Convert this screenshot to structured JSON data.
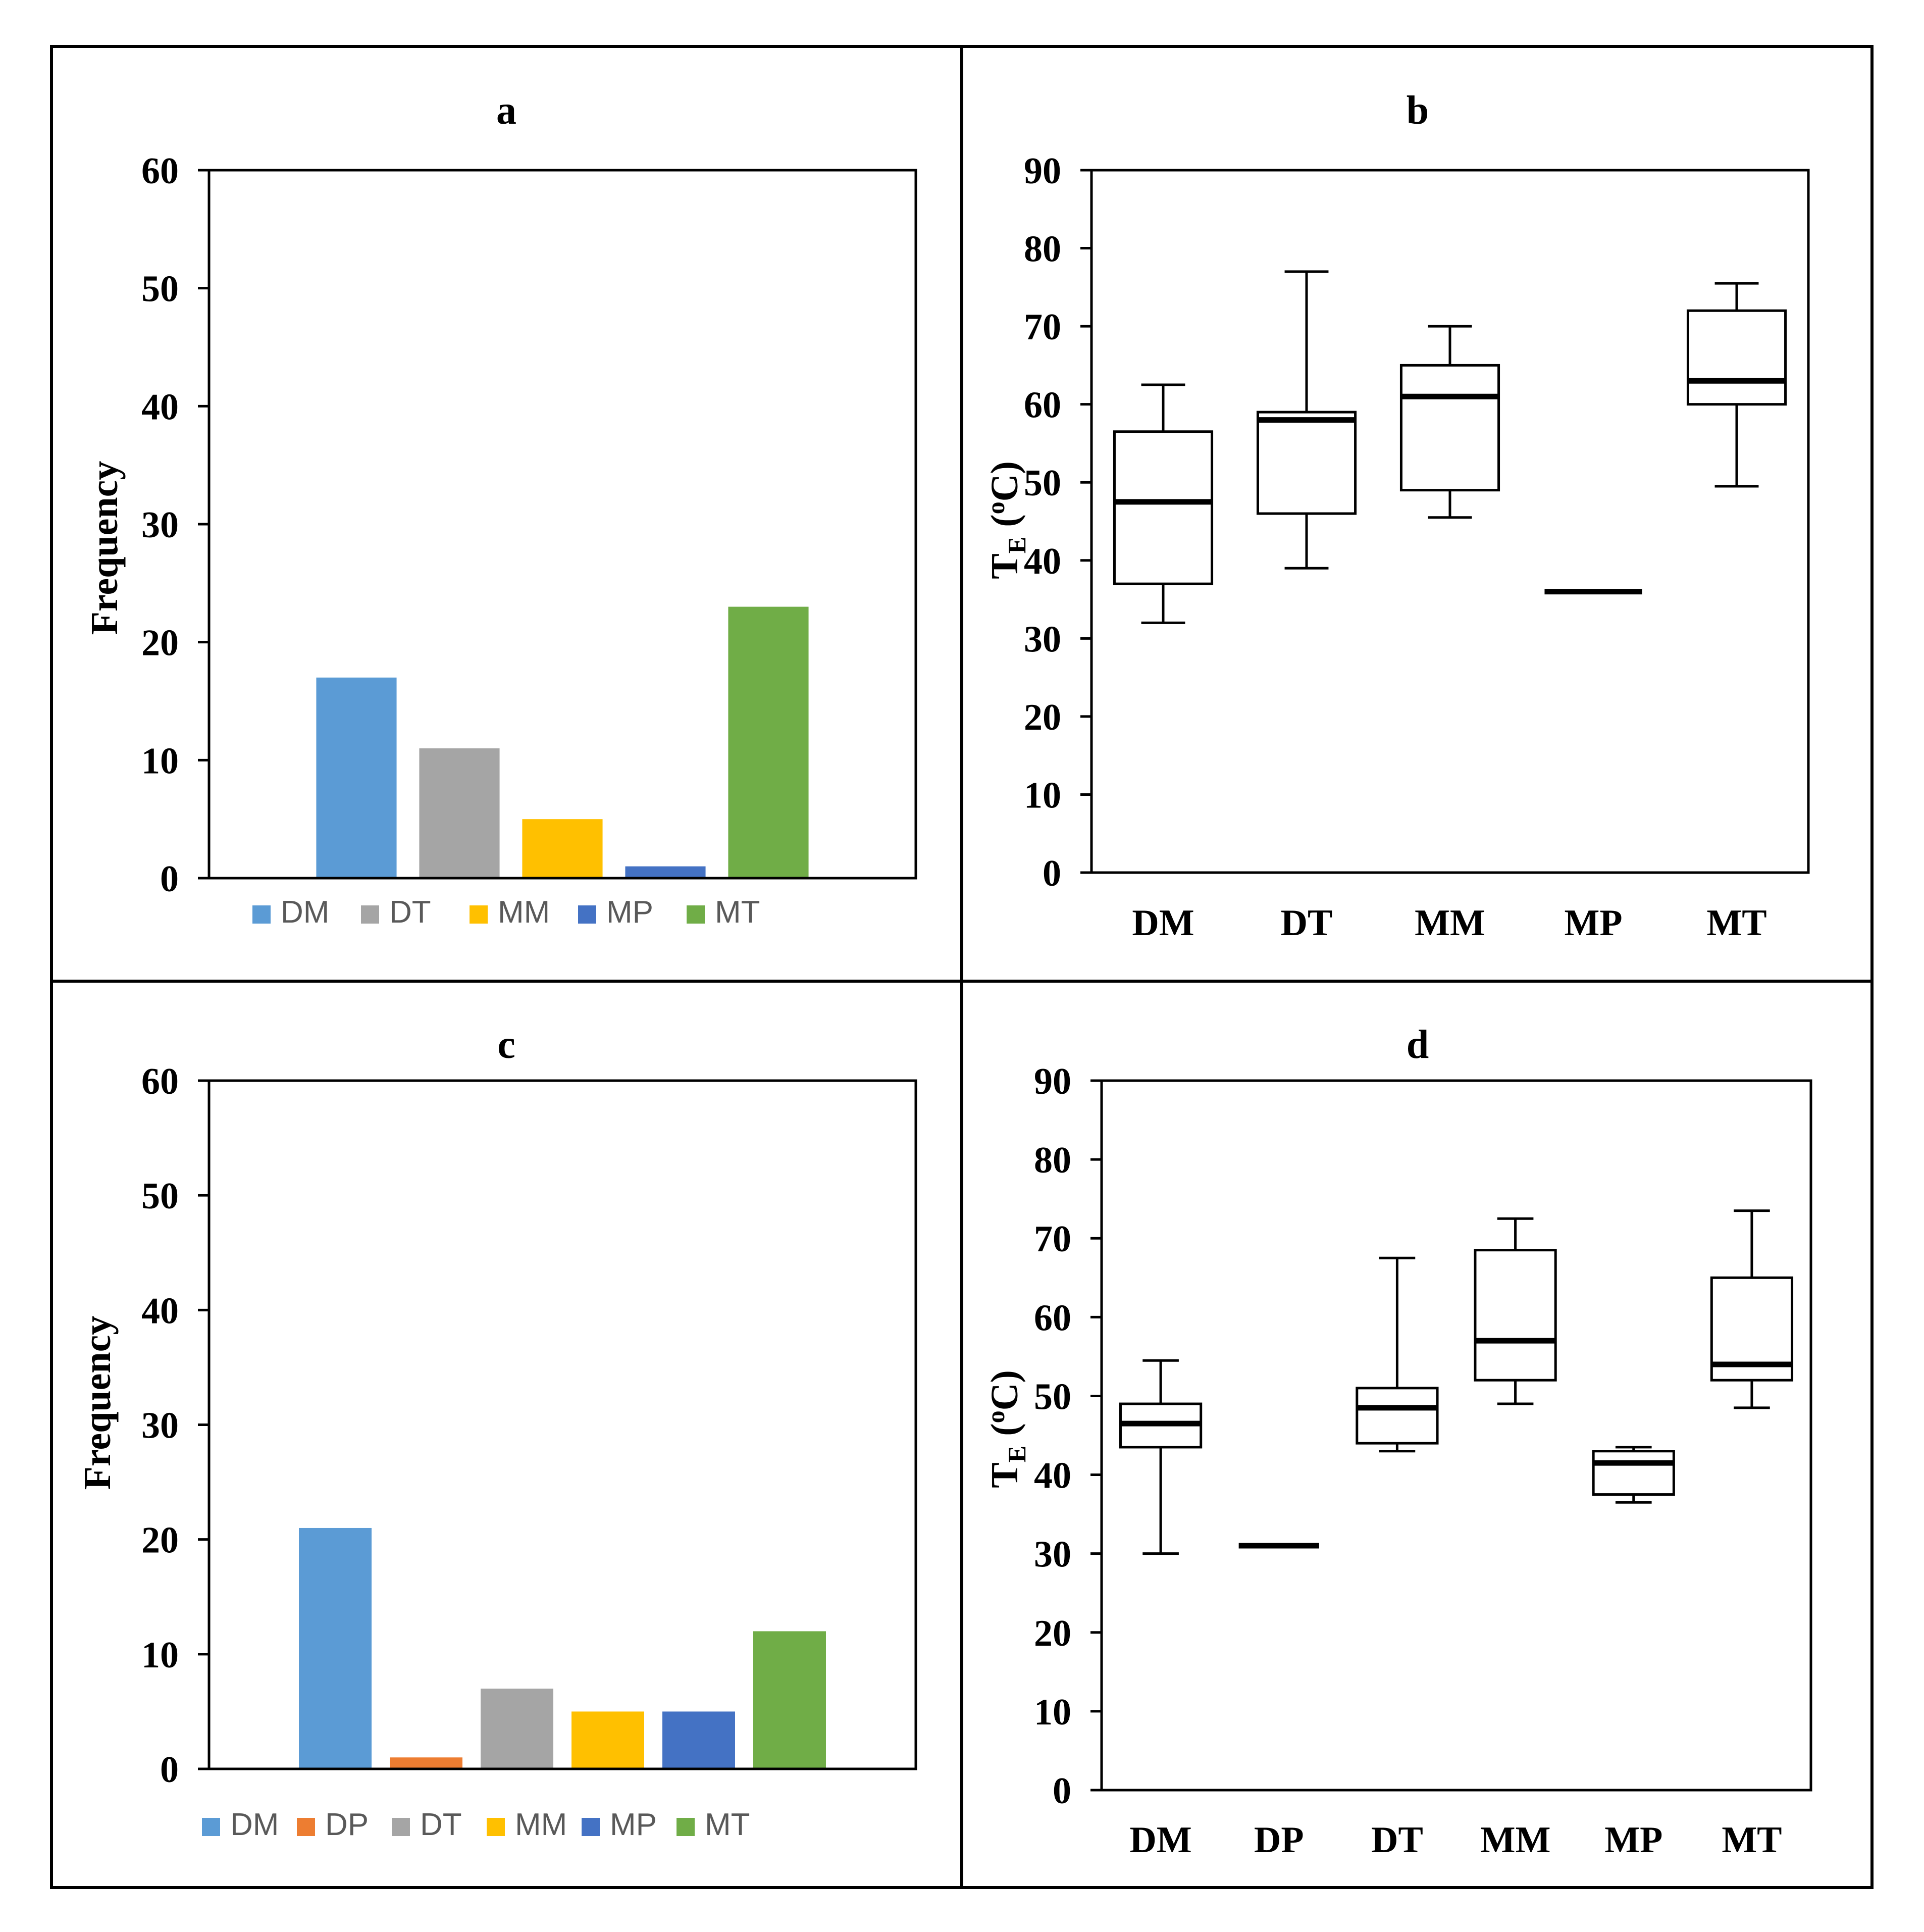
{
  "colors": {
    "DM": "#5b9bd5",
    "DP": "#ed7d31",
    "DT": "#a5a5a5",
    "MM": "#ffc000",
    "MP": "#4472c4",
    "MT": "#70ad47",
    "legend_text": "#595959",
    "ink": "#000000"
  },
  "chart_data": [
    {
      "panel": "a",
      "type": "bar",
      "title": "a",
      "ylabel": "Frequency",
      "xlabel": "",
      "ylim": [
        0,
        60
      ],
      "yticks": [
        0,
        10,
        20,
        30,
        40,
        50,
        60
      ],
      "categories": [
        "DM",
        "DT",
        "MM",
        "MP",
        "MT"
      ],
      "values": [
        17,
        11,
        5,
        1,
        23
      ],
      "legend": [
        "DM",
        "DT",
        "MM",
        "MP",
        "MT"
      ],
      "legend_position": "bottom",
      "grid": false
    },
    {
      "panel": "b",
      "type": "boxplot",
      "title": "b",
      "ylabel_main": "T",
      "ylabel_sub": "E",
      "ylabel_sup": "o",
      "ylabel_tail": "C)",
      "ylabel_open": " (",
      "ylim": [
        0,
        90
      ],
      "yticks": [
        0,
        10,
        20,
        30,
        40,
        50,
        60,
        70,
        80,
        90
      ],
      "categories": [
        "DM",
        "DT",
        "MM",
        "MP",
        "MT"
      ],
      "boxes": [
        {
          "min": 32,
          "q1": 37,
          "median": 47.5,
          "q3": 56.5,
          "max": 62.5
        },
        {
          "min": 39,
          "q1": 46,
          "median": 58,
          "q3": 59,
          "max": 77
        },
        {
          "min": 45.5,
          "q1": 49,
          "median": 61,
          "q3": 65,
          "max": 70
        },
        {
          "min": 36,
          "q1": 36,
          "median": 36,
          "q3": 36,
          "max": 36
        },
        {
          "min": 49.5,
          "q1": 60,
          "median": 63,
          "q3": 72,
          "max": 75.5
        }
      ],
      "grid": false
    },
    {
      "panel": "c",
      "type": "bar",
      "title": "c",
      "ylabel": "Frequency",
      "xlabel": "",
      "ylim": [
        0,
        60
      ],
      "yticks": [
        0,
        10,
        20,
        30,
        40,
        50,
        60
      ],
      "categories": [
        "DM",
        "DP",
        "DT",
        "MM",
        "MP",
        "MT"
      ],
      "values": [
        21,
        1,
        7,
        5,
        5,
        12
      ],
      "legend": [
        "DM",
        "DP",
        "DT",
        "MM",
        "MP",
        "MT"
      ],
      "legend_position": "bottom",
      "grid": false
    },
    {
      "panel": "d",
      "type": "boxplot",
      "title": "d",
      "ylabel_main": "T",
      "ylabel_sub": "E",
      "ylabel_sup": "o",
      "ylabel_tail": "C)",
      "ylabel_open": " (",
      "ylim": [
        0,
        90
      ],
      "yticks": [
        0,
        10,
        20,
        30,
        40,
        50,
        60,
        70,
        80,
        90
      ],
      "categories": [
        "DM",
        "DP",
        "DT",
        "MM",
        "MP",
        "MT"
      ],
      "boxes": [
        {
          "min": 30,
          "q1": 43.5,
          "median": 46.5,
          "q3": 49,
          "max": 54.5
        },
        {
          "min": 31,
          "q1": 31,
          "median": 31,
          "q3": 31,
          "max": 31
        },
        {
          "min": 43,
          "q1": 44,
          "median": 48.5,
          "q3": 51,
          "max": 67.5
        },
        {
          "min": 49,
          "q1": 52,
          "median": 57,
          "q3": 68.5,
          "max": 72.5
        },
        {
          "min": 36.5,
          "q1": 37.5,
          "median": 41.5,
          "q3": 43,
          "max": 43.5
        },
        {
          "min": 48.5,
          "q1": 52,
          "median": 54,
          "q3": 65,
          "max": 73.5
        }
      ],
      "grid": false
    }
  ]
}
